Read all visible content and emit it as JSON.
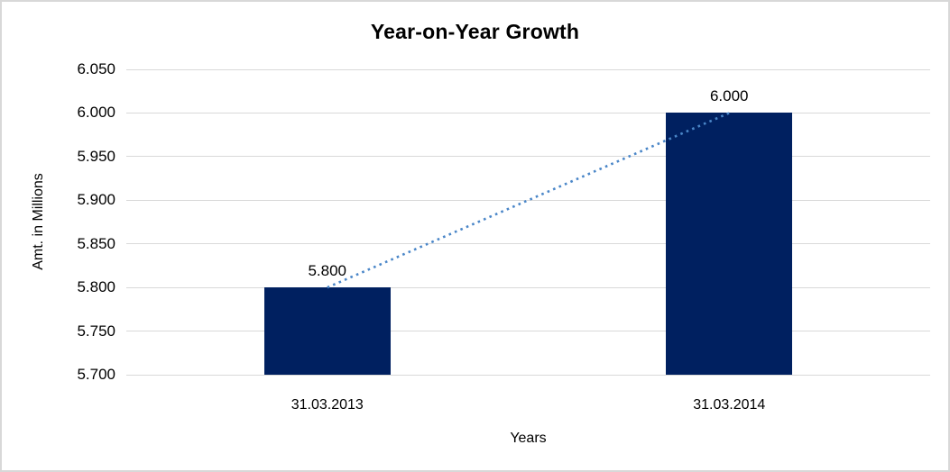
{
  "chart_data": {
    "type": "bar",
    "title": "Year-on-Year Growth",
    "xlabel": "Years",
    "ylabel": "Amt. in Millions",
    "categories": [
      "31.03.2013",
      "31.03.2014"
    ],
    "values": [
      5.8,
      6.0
    ],
    "value_labels": [
      "5.800",
      "6.000"
    ],
    "ylim": [
      5.7,
      6.05
    ],
    "ytick_values": [
      6.05,
      6.0,
      5.95,
      5.9,
      5.85,
      5.8,
      5.75,
      5.7
    ],
    "ytick_labels": [
      "6.050",
      "6.000",
      "5.950",
      "5.900",
      "5.850",
      "5.800",
      "5.750",
      "5.700"
    ],
    "grid": true,
    "legend": "none",
    "bar_color": "#002060",
    "gridline_color": "#d9d9d9",
    "trendline": {
      "type": "linear",
      "style": "dotted",
      "color": "#4a86c8"
    }
  }
}
